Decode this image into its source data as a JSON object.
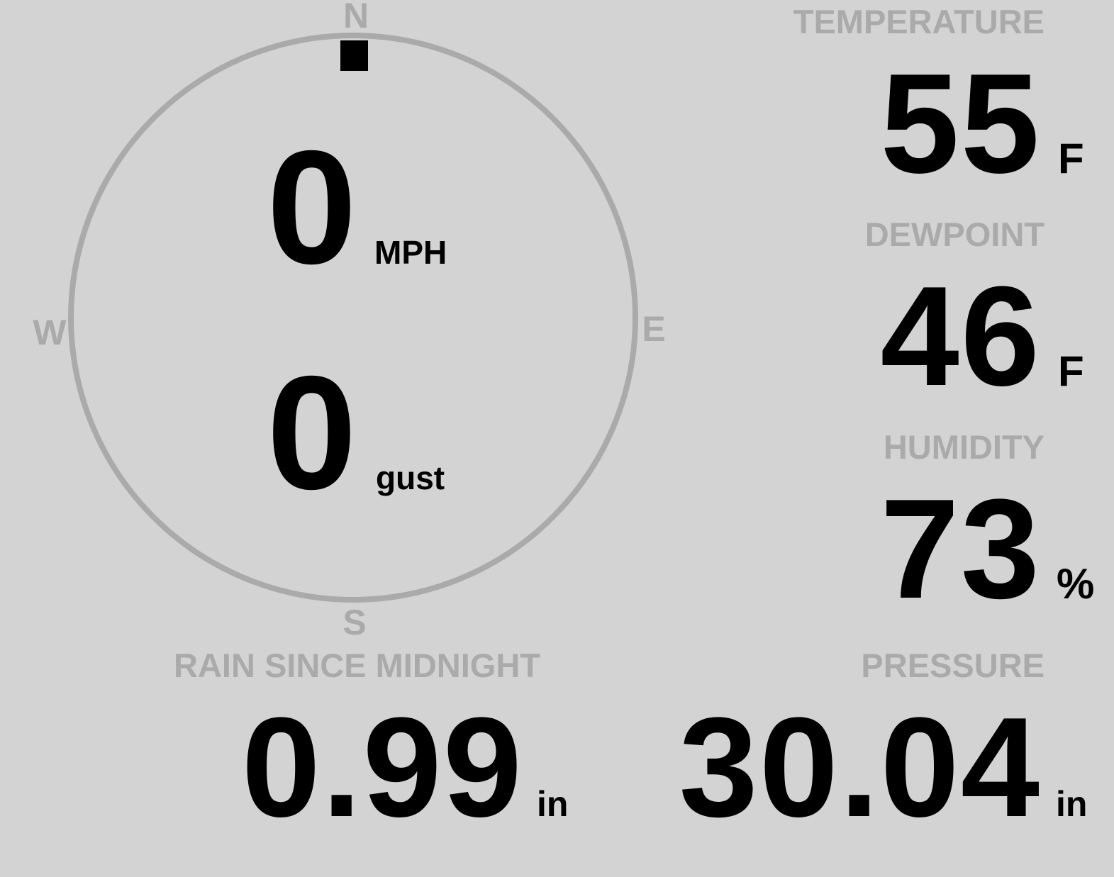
{
  "colors": {
    "background": "#d3d3d3",
    "label": "#aaaaaa",
    "value": "#000000",
    "dial": "#aaaaaa"
  },
  "wind": {
    "compass": {
      "n": "N",
      "e": "E",
      "s": "S",
      "w": "W"
    },
    "direction_deg": 0,
    "speed": "0",
    "speed_unit": "MPH",
    "gust": "0",
    "gust_unit": "gust"
  },
  "temperature": {
    "label": "TEMPERATURE",
    "value": "55",
    "unit": "F"
  },
  "dewpoint": {
    "label": "DEWPOINT",
    "value": "46",
    "unit": "F"
  },
  "humidity": {
    "label": "HUMIDITY",
    "value": "73",
    "unit": "%"
  },
  "rain": {
    "label": "RAIN SINCE MIDNIGHT",
    "value": "0.99",
    "unit": "in"
  },
  "pressure": {
    "label": "PRESSURE",
    "value": "30.04",
    "unit": "in"
  }
}
